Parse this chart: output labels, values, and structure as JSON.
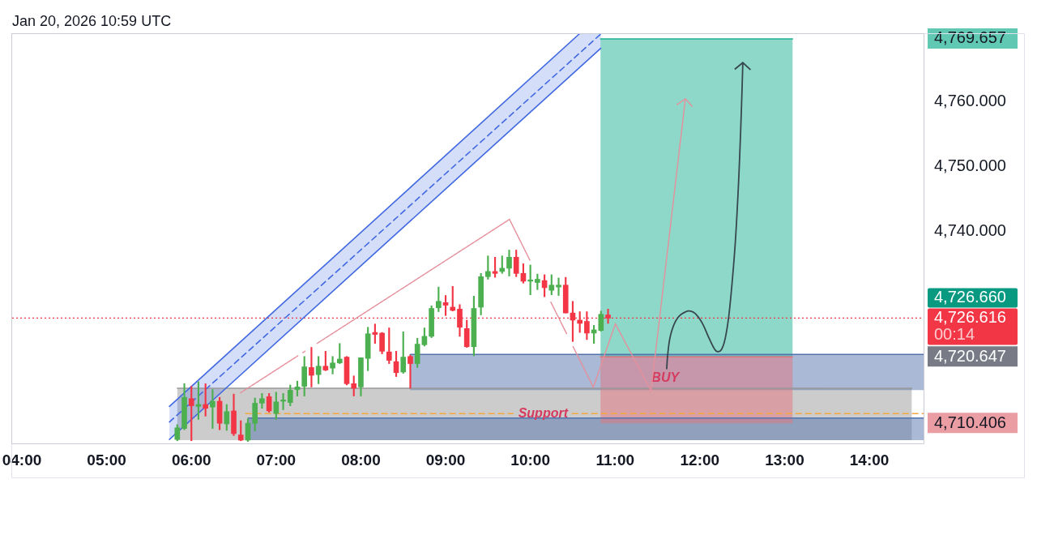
{
  "chart_data": {
    "type": "candlestick",
    "title": "Jan 20, 2026 10:59 UTC",
    "x": [
      5.8333,
      5.9167,
      6,
      6.0833,
      6.1667,
      6.25,
      6.3333,
      6.4167,
      6.5,
      6.5833,
      6.6667,
      6.75,
      6.8333,
      6.9167,
      7,
      7.0833,
      7.1667,
      7.25,
      7.3333,
      7.4167,
      7.5,
      7.5833,
      7.6667,
      7.75,
      7.8333,
      7.9167,
      8,
      8.0833,
      8.1667,
      8.25,
      8.3333,
      8.4167,
      8.5,
      8.5833,
      8.6667,
      8.75,
      8.8333,
      8.9167,
      9,
      9.0833,
      9.1667,
      9.25,
      9.3333,
      9.4167,
      9.5,
      9.5833,
      9.6667,
      9.75,
      9.8333,
      9.9167,
      10,
      10.0833,
      10.1667,
      10.25,
      10.3333,
      10.4167,
      10.5,
      10.5833,
      10.6667,
      10.75,
      10.8333,
      10.9167
    ],
    "ohlc": [
      [
        4707.9,
        4710.2,
        4707.7,
        4709.7
      ],
      [
        4709.6,
        4716.5,
        4709.4,
        4714.4
      ],
      [
        4714.2,
        4716.1,
        4707.7,
        4713.1
      ],
      [
        4713.0,
        4716.8,
        4711.0,
        4713.3
      ],
      [
        4713.3,
        4716.5,
        4711.5,
        4712.7
      ],
      [
        4712.9,
        4715.6,
        4709.6,
        4713.8
      ],
      [
        4713.8,
        4714.4,
        4709.4,
        4710.4
      ],
      [
        4710.3,
        4713.3,
        4709.3,
        4712.2
      ],
      [
        4712.3,
        4714.9,
        4708.5,
        4708.8
      ],
      [
        4708.6,
        4710.8,
        4707.7,
        4707.8
      ],
      [
        4707.8,
        4711.1,
        4707.6,
        4710.4
      ],
      [
        4710.4,
        4714.3,
        4709.2,
        4713.5
      ],
      [
        4713.5,
        4715.0,
        4712.7,
        4714.2
      ],
      [
        4714.5,
        4715.0,
        4712.1,
        4712.3
      ],
      [
        4711.9,
        4715.2,
        4711.0,
        4713.7
      ],
      [
        4713.8,
        4715.0,
        4712.5,
        4714.0
      ],
      [
        4713.6,
        4716.3,
        4713.1,
        4715.5
      ],
      [
        4715.6,
        4716.9,
        4714.6,
        4716.0
      ],
      [
        4716.1,
        4720.7,
        4714.6,
        4719.1
      ],
      [
        4719.0,
        4722.1,
        4716.0,
        4717.8
      ],
      [
        4717.9,
        4720.7,
        4716.5,
        4719.2
      ],
      [
        4719.2,
        4721.5,
        4718.5,
        4718.6
      ],
      [
        4718.9,
        4720.7,
        4718.0,
        4719.7
      ],
      [
        4719.7,
        4722.7,
        4719.6,
        4720.3
      ],
      [
        4720.6,
        4720.7,
        4716.3,
        4716.5
      ],
      [
        4716.5,
        4717.7,
        4714.6,
        4715.8
      ],
      [
        4716.0,
        4720.5,
        4714.6,
        4720.5
      ],
      [
        4720.4,
        4725.2,
        4718.5,
        4724.2
      ],
      [
        4724.4,
        4725.7,
        4722.7,
        4724.1
      ],
      [
        4724.3,
        4724.4,
        4721.1,
        4721.5
      ],
      [
        4721.4,
        4725.1,
        4719.6,
        4720.1
      ],
      [
        4719.9,
        4721.5,
        4717.6,
        4718.2
      ],
      [
        4718.3,
        4724.5,
        4718.1,
        4720.6
      ],
      [
        4720.7,
        4720.9,
        4715.8,
        4719.6
      ],
      [
        4719.6,
        4723.5,
        4719.0,
        4722.6
      ],
      [
        4722.5,
        4725.1,
        4722.3,
        4723.8
      ],
      [
        4723.8,
        4728.5,
        4723.6,
        4728.1
      ],
      [
        4728.2,
        4731.4,
        4727.6,
        4729.2
      ],
      [
        4729.0,
        4730.1,
        4727.0,
        4728.6
      ],
      [
        4728.3,
        4731.5,
        4727.7,
        4727.8
      ],
      [
        4728.0,
        4728.7,
        4723.8,
        4725.2
      ],
      [
        4725.0,
        4726.3,
        4722.1,
        4722.2
      ],
      [
        4722.2,
        4730.0,
        4720.8,
        4728.1
      ],
      [
        4728.3,
        4733.5,
        4727.1,
        4733.0
      ],
      [
        4733.0,
        4736.2,
        4732.6,
        4733.8
      ],
      [
        4733.8,
        4736.0,
        4732.9,
        4733.5
      ],
      [
        4733.8,
        4736.2,
        4733.5,
        4734.3
      ],
      [
        4734.3,
        4737.1,
        4733.1,
        4736.0
      ],
      [
        4736.0,
        4737.1,
        4733.0,
        4733.5
      ],
      [
        4733.5,
        4735.0,
        4732.0,
        4732.3
      ],
      [
        4732.3,
        4734.8,
        4730.2,
        4732.5
      ],
      [
        4732.1,
        4733.4,
        4731.0,
        4732.6
      ],
      [
        4732.4,
        4733.3,
        4729.9,
        4731.3
      ],
      [
        4730.9,
        4733.3,
        4730.2,
        4731.7
      ],
      [
        4731.4,
        4732.8,
        4730.1,
        4731.7
      ],
      [
        4731.7,
        4732.9,
        4727.4,
        4727.4
      ],
      [
        4727.4,
        4729.2,
        4723.0,
        4726.3
      ],
      [
        4726.3,
        4727.6,
        4724.4,
        4725.8
      ],
      [
        4726.1,
        4727.6,
        4723.3,
        4724.3
      ],
      [
        4724.3,
        4725.5,
        4722.7,
        4724.8
      ],
      [
        4724.7,
        4727.7,
        4724.6,
        4727.2
      ],
      [
        4727.1,
        4728.0,
        4725.8,
        4726.6
      ]
    ],
    "series": [
      {
        "type": "line",
        "color": "#999999",
        "x": [
          5.834,
          14.5
        ],
        "values": [
          4715.8,
          4715.8
        ],
        "lower": [
          4707.8,
          4707.8
        ],
        "upper": [
          4715.8,
          4715.8
        ]
      },
      {
        "type": "line",
        "color": "#5373ad",
        "x": [
          6.67,
          14.64
        ],
        "values": [
          4711.2,
          4711.2
        ],
        "lower": [
          4707.8,
          4707.8
        ],
        "upper": [
          4711.2,
          4711.2
        ]
      },
      {
        "type": "line",
        "color": "#5373ad",
        "x": [
          8.582,
          14.64
        ],
        "values": [
          4721.0,
          4721.0
        ],
        "lower": [
          4715.5,
          4715.5
        ],
        "upper": [
          4721.0,
          4721.0
        ]
      },
      {
        "type": "line",
        "color": "#1db193",
        "x": [
          10.828,
          13.094
        ],
        "values": [
          4769.657,
          4769.657
        ],
        "lower": [
          4720.647,
          4720.647
        ],
        "upper": [
          4769.657,
          4769.657
        ]
      },
      {
        "type": "line",
        "name": "BUY",
        "color": "#e3737d",
        "x": [
          10.828,
          13.094
        ],
        "values": [
          4720.647,
          4720.647
        ],
        "lower": [
          4710.406,
          4710.406
        ],
        "upper": [
          4720.647,
          4720.647
        ]
      },
      {
        "type": "line",
        "color": "#4169e1",
        "line_style": "dashed",
        "x": [
          5.741,
          10.576,
          10.83
        ],
        "values": [
          4710.6,
          4767.4,
          4770.4
        ],
        "lower": [
          4707.9,
          4765.2,
          4768.2
        ],
        "upper": [
          4713.0,
          4770.4,
          4770.4
        ]
      },
      {
        "type": "line",
        "color": "#4169e1",
        "line_style": "solid",
        "x": [
          5.741,
          10.576
        ],
        "values": [
          4713.0,
          4770.4
        ]
      },
      {
        "type": "line",
        "color": "#4169e1",
        "line_style": "solid",
        "x": [
          5.741,
          10.83
        ],
        "values": [
          4707.9,
          4768.2
        ]
      },
      {
        "type": "line",
        "name": "Support",
        "color": "#f5a742",
        "line_style": "dashed",
        "x": [
          6.64,
          9.795,
          10.15,
          10.493,
          14.64
        ],
        "values": [
          4711.9,
          4711.9,
          null,
          4711.9,
          4711.9
        ]
      }
    ],
    "ref_lines": [
      {
        "axis": "y",
        "value": 4726.616,
        "label": "4,726.616",
        "color": "#f23645",
        "line_style": "dotted"
      }
    ],
    "annotations": [
      "4,726.660",
      "00:14"
    ],
    "xlim": [
      3.885,
      14.64
    ],
    "xticks": [
      {
        "value": 4,
        "label": "04:00"
      },
      {
        "value": 5,
        "label": "05:00"
      },
      {
        "value": 6,
        "label": "06:00"
      },
      {
        "value": 7,
        "label": "07:00"
      },
      {
        "value": 8,
        "label": "08:00"
      },
      {
        "value": 9,
        "label": "09:00"
      },
      {
        "value": 10,
        "label": "10:00"
      },
      {
        "value": 11,
        "label": "11:00"
      },
      {
        "value": 12,
        "label": "12:00"
      },
      {
        "value": 13,
        "label": "13:00"
      },
      {
        "value": 14,
        "label": "14:00"
      }
    ],
    "ylim": [
      4707.3,
      4770.4
    ],
    "yticks": [
      {
        "value": 4710.406,
        "label": "4,710.406"
      },
      {
        "value": 4720.647,
        "label": "4,720.647"
      },
      {
        "value": 4740,
        "label": "4,740.000"
      },
      {
        "value": 4750,
        "label": "4,750.000"
      },
      {
        "value": 4760,
        "label": "4,760.000"
      },
      {
        "value": 4769.657,
        "label": "4,769.657"
      }
    ],
    "marker": "none"
  }
}
